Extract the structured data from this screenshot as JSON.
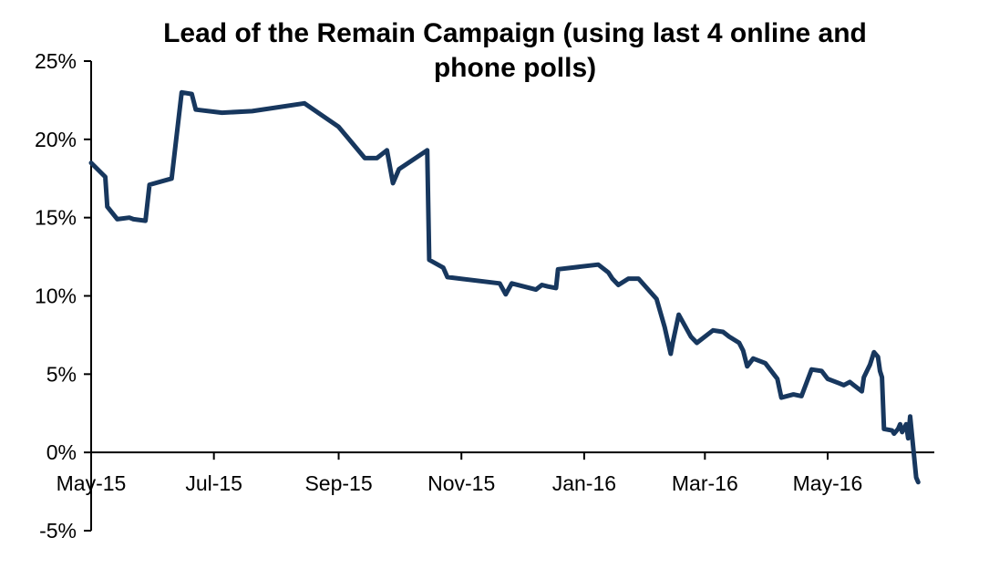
{
  "chart_data": {
    "type": "line",
    "title": "Lead of the Remain Campaign (using last 4 online and phone polls)",
    "title_lines": [
      "Lead of the Remain Campaign (using last 4 online and",
      "phone polls)"
    ],
    "xlabel": "",
    "ylabel": "",
    "xlim": [
      "2015-05-01",
      "2016-06-23"
    ],
    "ylim": [
      -5,
      25
    ],
    "ytick_values": [
      -5,
      0,
      5,
      10,
      15,
      20,
      25
    ],
    "ytick_labels": [
      "-5%",
      "0%",
      "5%",
      "10%",
      "15%",
      "20%",
      "25%"
    ],
    "xtick_dates": [
      "2015-05-01",
      "2015-07-01",
      "2015-09-01",
      "2015-11-01",
      "2016-01-01",
      "2016-03-01",
      "2016-05-01"
    ],
    "xtick_labels": [
      "May-15",
      "Jul-15",
      "Sep-15",
      "Nov-15",
      "Jan-16",
      "Mar-16",
      "May-16"
    ],
    "grid": false,
    "legend": "none",
    "line_color": "#17375E",
    "series": [
      {
        "x": [
          "2015-05-01",
          "2015-05-08",
          "2015-05-09",
          "2015-05-14",
          "2015-05-20",
          "2015-05-22",
          "2015-05-28",
          "2015-05-30",
          "2015-06-10",
          "2015-06-15",
          "2015-06-20",
          "2015-06-22",
          "2015-07-05",
          "2015-07-20",
          "2015-08-15",
          "2015-09-01",
          "2015-09-14",
          "2015-09-20",
          "2015-09-25",
          "2015-09-28",
          "2015-10-01",
          "2015-10-15",
          "2015-10-16",
          "2015-10-23",
          "2015-10-25",
          "2015-11-20",
          "2015-11-23",
          "2015-11-26",
          "2015-12-08",
          "2015-12-11",
          "2015-12-14",
          "2015-12-18",
          "2015-12-19",
          "2016-01-08",
          "2016-01-13",
          "2016-01-15",
          "2016-01-18",
          "2016-01-23",
          "2016-01-28",
          "2016-02-06",
          "2016-02-10",
          "2016-02-13",
          "2016-02-14",
          "2016-02-17",
          "2016-02-23",
          "2016-02-26",
          "2016-03-05",
          "2016-03-10",
          "2016-03-12",
          "2016-03-13",
          "2016-03-18",
          "2016-03-20",
          "2016-03-22",
          "2016-03-25",
          "2016-03-31",
          "2016-04-06",
          "2016-04-08",
          "2016-04-14",
          "2016-04-18",
          "2016-04-23",
          "2016-04-28",
          "2016-05-01",
          "2016-05-03",
          "2016-05-07",
          "2016-05-09",
          "2016-05-12",
          "2016-05-14",
          "2016-05-18",
          "2016-05-19",
          "2016-05-22",
          "2016-05-24",
          "2016-05-26",
          "2016-05-27",
          "2016-05-28",
          "2016-05-29",
          "2016-06-02",
          "2016-06-03",
          "2016-06-05",
          "2016-06-06",
          "2016-06-07",
          "2016-06-09",
          "2016-06-10",
          "2016-06-11",
          "2016-06-13",
          "2016-06-14",
          "2016-06-15"
        ],
        "y": [
          18.5,
          17.6,
          15.7,
          14.9,
          15.0,
          14.9,
          14.8,
          17.1,
          17.5,
          23.0,
          22.9,
          21.9,
          21.7,
          21.8,
          22.3,
          20.8,
          18.8,
          18.8,
          19.3,
          17.2,
          18.1,
          19.3,
          12.3,
          11.8,
          11.2,
          10.8,
          10.1,
          10.8,
          10.4,
          10.7,
          10.6,
          10.5,
          11.7,
          12.0,
          11.5,
          11.1,
          10.7,
          11.1,
          11.1,
          9.8,
          8.0,
          6.3,
          7.0,
          8.8,
          7.4,
          7.0,
          7.8,
          7.7,
          7.5,
          7.4,
          7.0,
          6.5,
          5.5,
          6.0,
          5.7,
          4.7,
          3.5,
          3.7,
          3.6,
          5.3,
          5.2,
          4.7,
          4.6,
          4.4,
          4.3,
          4.5,
          4.3,
          3.9,
          4.8,
          5.6,
          6.4,
          6.1,
          5.2,
          4.8,
          1.5,
          1.4,
          1.2,
          1.5,
          1.8,
          1.3,
          1.8,
          0.9,
          2.3,
          -0.3,
          -1.6,
          -1.9
        ]
      }
    ]
  }
}
